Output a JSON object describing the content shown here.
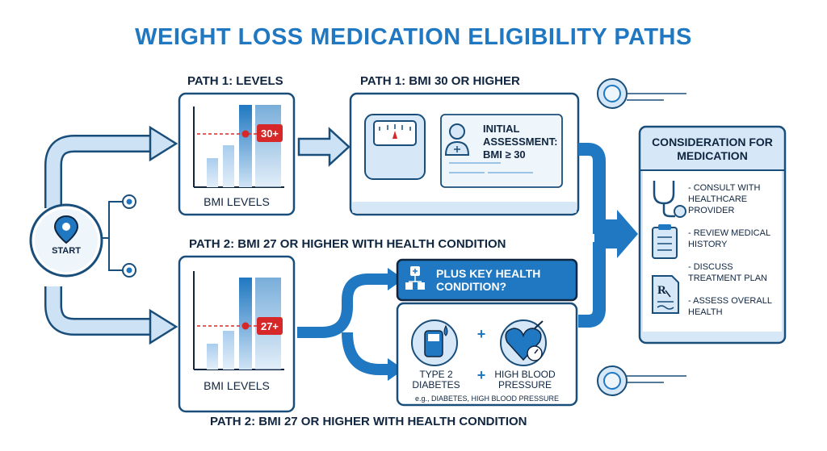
{
  "title": "WEIGHT LOSS MEDICATION ELIGIBILITY PATHS",
  "start_label": "START",
  "path1": {
    "levels_header": "PATH 1: LEVELS",
    "bmi_header": "PATH 1: BMI 30 OR HIGHER",
    "chart_caption": "BMI LEVELS",
    "threshold_badge": "30+",
    "assessment_text": "INITIAL ASSESSMENT: BMI ≥ 30"
  },
  "path2": {
    "header_mid": "PATH 2: BMI 27 OR HIGHER WITH HEALTH CONDITION",
    "header_bottom": "PATH 2: BMI 27 OR HIGHER WITH HEALTH CONDITION",
    "chart_caption": "BMI LEVELS",
    "threshold_badge": "27+",
    "condition_question": "PLUS KEY HEALTH CONDITION?",
    "condition1": "TYPE 2 DIABETES",
    "condition2": "HIGH BLOOD PRESSURE",
    "plus_sign": "+",
    "examples": "e.g., DIABETES, HIGH BLOOD PRESSURE"
  },
  "consideration": {
    "title": "CONSIDERATION FOR MEDICATION",
    "items": [
      {
        "text": "- CONSULT WITH HEALTHCARE PROVIDER",
        "icon": "stethoscope-icon"
      },
      {
        "text": "- REVIEW MEDICAL HISTORY",
        "icon": "clipboard-icon"
      },
      {
        "text": "- DISCUSS TREATMENT PLAN",
        "icon": "prescription-icon"
      },
      {
        "text": "- ASSESS OVERALL HEALTH",
        "icon": ""
      }
    ]
  },
  "colors": {
    "primary": "#1f78c1",
    "dark": "#0f2540",
    "light": "#d6e8f7",
    "accent_red": "#d62828"
  }
}
